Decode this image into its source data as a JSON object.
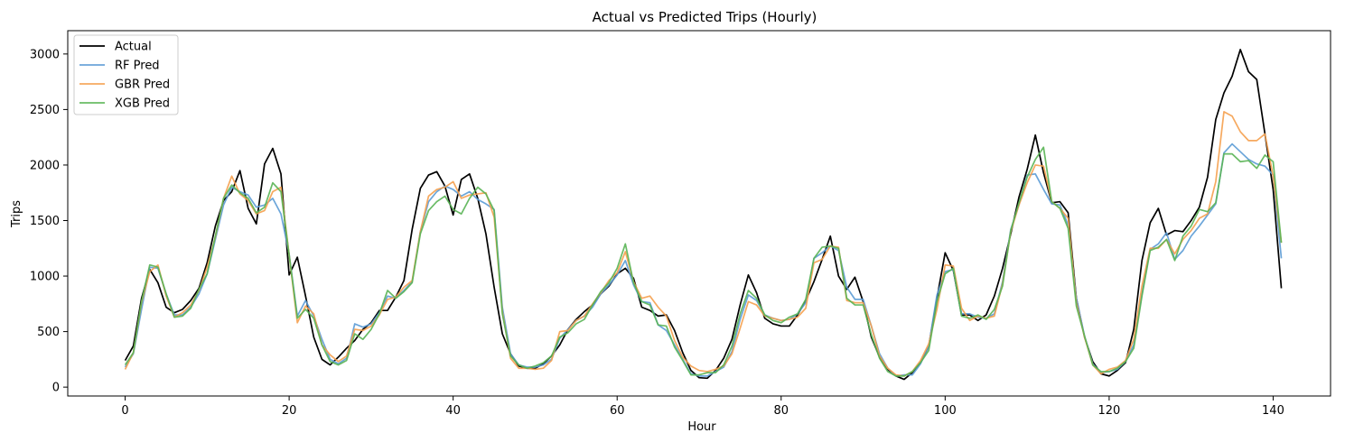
{
  "chart_data": {
    "type": "line",
    "title": "Actual vs Predicted Trips (Hourly)",
    "xlabel": "Hour",
    "ylabel": "Trips",
    "xlim": [
      -7,
      147
    ],
    "ylim": [
      -80,
      3210
    ],
    "xticks": [
      0,
      20,
      40,
      60,
      80,
      100,
      120,
      140
    ],
    "yticks": [
      0,
      500,
      1000,
      1500,
      2000,
      2500,
      3000
    ],
    "grid": false,
    "legend_position": "top-left",
    "series": [
      {
        "name": "Actual",
        "color": "#000000",
        "opacity": 1,
        "values": [
          240,
          370,
          800,
          1060,
          940,
          720,
          670,
          700,
          780,
          890,
          1120,
          1450,
          1680,
          1760,
          1950,
          1610,
          1470,
          2010,
          2150,
          1920,
          1010,
          1170,
          820,
          450,
          250,
          200,
          270,
          350,
          420,
          520,
          580,
          690,
          690,
          810,
          960,
          1420,
          1790,
          1910,
          1940,
          1810,
          1550,
          1870,
          1920,
          1700,
          1380,
          900,
          480,
          300,
          190,
          170,
          170,
          210,
          280,
          380,
          520,
          610,
          680,
          740,
          840,
          910,
          1020,
          1070,
          980,
          720,
          690,
          640,
          650,
          510,
          310,
          150,
          85,
          80,
          150,
          260,
          430,
          740,
          1010,
          850,
          620,
          570,
          550,
          550,
          650,
          780,
          950,
          1150,
          1360,
          1000,
          880,
          990,
          770,
          450,
          270,
          160,
          100,
          70,
          130,
          220,
          370,
          800,
          1210,
          1050,
          650,
          650,
          600,
          650,
          820,
          1070,
          1380,
          1710,
          1960,
          2270,
          1930,
          1660,
          1670,
          1570,
          800,
          450,
          230,
          120,
          100,
          150,
          220,
          520,
          1140,
          1480,
          1610,
          1370,
          1410,
          1400,
          1500,
          1620,
          1890,
          2410,
          2650,
          2800,
          3040,
          2840,
          2770,
          2280,
          1780,
          890
        ]
      },
      {
        "name": "RF Pred",
        "color": "#5b9bd5",
        "opacity": 0.9,
        "values": [
          180,
          300,
          700,
          1080,
          1070,
          840,
          650,
          650,
          720,
          840,
          1020,
          1330,
          1640,
          1800,
          1760,
          1730,
          1620,
          1640,
          1700,
          1560,
          1200,
          640,
          780,
          640,
          430,
          250,
          210,
          260,
          570,
          540,
          570,
          670,
          820,
          800,
          870,
          950,
          1400,
          1670,
          1760,
          1810,
          1780,
          1720,
          1760,
          1690,
          1650,
          1600,
          720,
          300,
          200,
          180,
          180,
          200,
          250,
          440,
          520,
          600,
          640,
          720,
          840,
          920,
          1010,
          1140,
          920,
          770,
          760,
          560,
          510,
          380,
          250,
          120,
          100,
          100,
          140,
          180,
          320,
          610,
          830,
          780,
          650,
          620,
          600,
          610,
          660,
          760,
          1160,
          1210,
          1270,
          1230,
          900,
          790,
          790,
          550,
          300,
          170,
          100,
          110,
          110,
          210,
          370,
          830,
          1040,
          1060,
          660,
          660,
          630,
          620,
          660,
          950,
          1420,
          1640,
          1910,
          1920,
          1780,
          1650,
          1640,
          1460,
          800,
          460,
          210,
          130,
          140,
          160,
          230,
          380,
          840,
          1240,
          1290,
          1390,
          1150,
          1230,
          1360,
          1450,
          1550,
          1650,
          2110,
          2190,
          2120,
          2050,
          2010,
          1990,
          1910,
          1160
        ]
      },
      {
        "name": "GBR Pred",
        "color": "#f5a04e",
        "opacity": 0.9,
        "values": [
          160,
          310,
          760,
          1040,
          1100,
          820,
          630,
          670,
          740,
          870,
          1080,
          1350,
          1700,
          1900,
          1740,
          1680,
          1560,
          1590,
          1760,
          1800,
          1190,
          580,
          730,
          660,
          380,
          290,
          230,
          280,
          520,
          510,
          550,
          650,
          790,
          810,
          900,
          960,
          1400,
          1720,
          1780,
          1800,
          1850,
          1700,
          1730,
          1740,
          1750,
          1530,
          680,
          260,
          170,
          170,
          160,
          170,
          240,
          500,
          510,
          600,
          640,
          750,
          850,
          960,
          1030,
          1220,
          950,
          800,
          820,
          720,
          640,
          420,
          270,
          190,
          150,
          140,
          160,
          190,
          300,
          530,
          770,
          740,
          640,
          620,
          600,
          610,
          630,
          710,
          1120,
          1150,
          1270,
          1260,
          780,
          760,
          760,
          550,
          280,
          170,
          110,
          100,
          140,
          240,
          390,
          700,
          1100,
          1090,
          710,
          600,
          640,
          620,
          640,
          930,
          1400,
          1640,
          1840,
          2000,
          1990,
          1670,
          1610,
          1520,
          760,
          450,
          200,
          120,
          160,
          180,
          240,
          430,
          910,
          1250,
          1250,
          1330,
          1200,
          1330,
          1410,
          1520,
          1560,
          1850,
          2480,
          2440,
          2300,
          2220,
          2220,
          2280,
          1900,
          1300
        ]
      },
      {
        "name": "XGB Pred",
        "color": "#59b454",
        "opacity": 0.9,
        "values": [
          200,
          310,
          770,
          1100,
          1080,
          840,
          630,
          640,
          710,
          880,
          1020,
          1360,
          1700,
          1820,
          1750,
          1700,
          1570,
          1620,
          1840,
          1760,
          1190,
          620,
          700,
          620,
          380,
          230,
          200,
          240,
          480,
          430,
          520,
          660,
          870,
          800,
          860,
          940,
          1380,
          1590,
          1670,
          1720,
          1600,
          1560,
          1700,
          1800,
          1740,
          1590,
          660,
          280,
          200,
          170,
          190,
          220,
          280,
          450,
          490,
          570,
          610,
          740,
          860,
          940,
          1070,
          1290,
          940,
          770,
          740,
          560,
          550,
          360,
          240,
          110,
          110,
          130,
          130,
          200,
          370,
          660,
          870,
          800,
          650,
          600,
          580,
          630,
          660,
          790,
          1160,
          1260,
          1270,
          1250,
          800,
          740,
          740,
          470,
          260,
          140,
          100,
          100,
          140,
          220,
          330,
          770,
          1020,
          1070,
          640,
          620,
          650,
          610,
          700,
          910,
          1410,
          1660,
          1890,
          2050,
          2160,
          1670,
          1610,
          1430,
          730,
          460,
          200,
          140,
          140,
          170,
          230,
          350,
          820,
          1230,
          1260,
          1330,
          1140,
          1360,
          1450,
          1600,
          1580,
          1660,
          2100,
          2100,
          2030,
          2040,
          1970,
          2090,
          2030,
          1300
        ]
      }
    ]
  }
}
